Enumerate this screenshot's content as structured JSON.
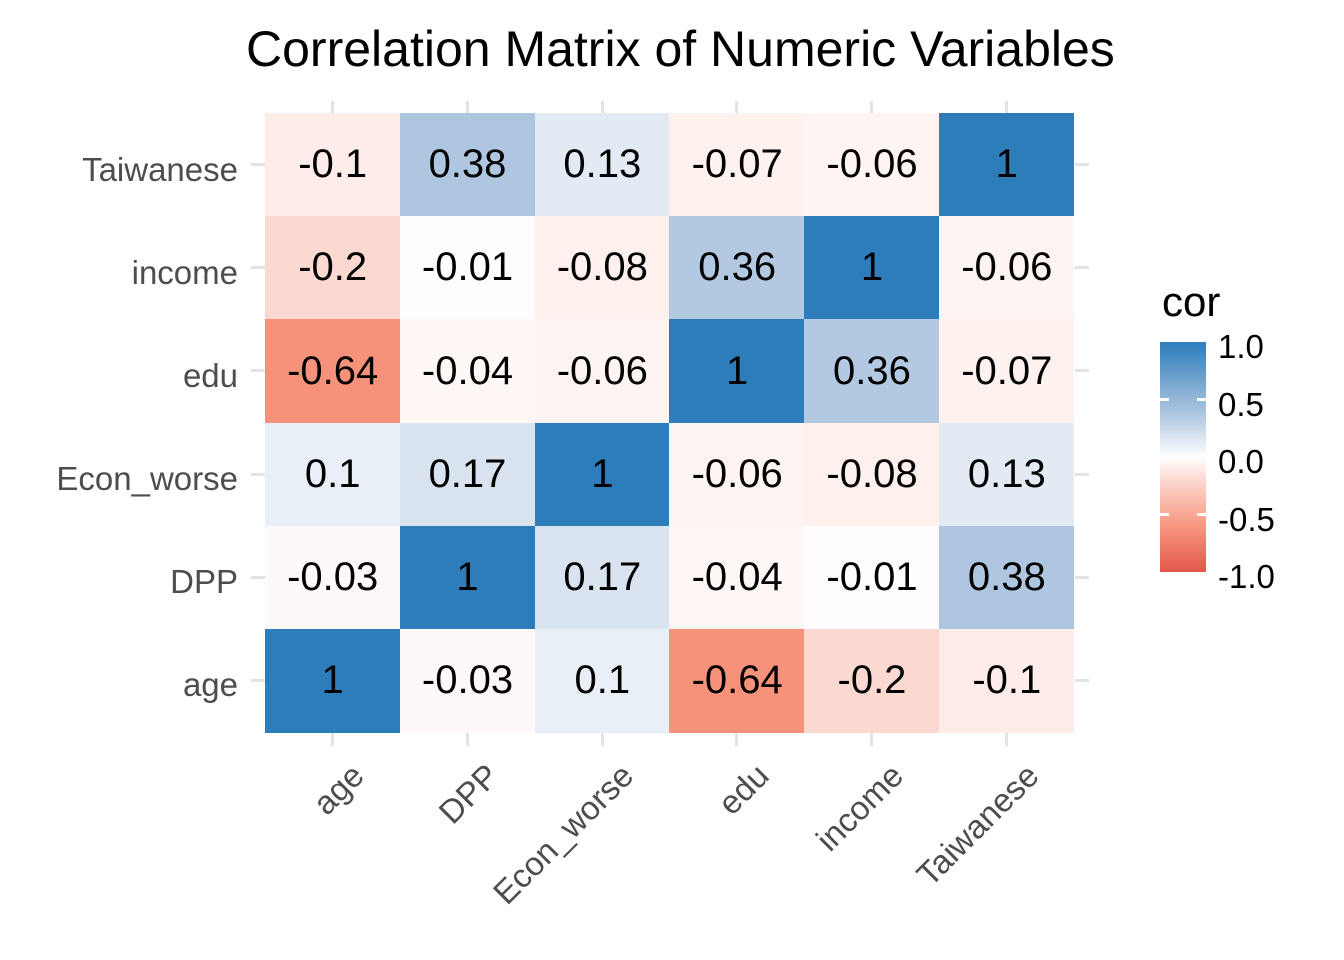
{
  "title": "Correlation Matrix of Numeric Variables",
  "chart_data": {
    "type": "heatmap",
    "title": "Correlation Matrix of Numeric Variables",
    "x_categories": [
      "age",
      "DPP",
      "Econ_worse",
      "edu",
      "income",
      "Taiwanese"
    ],
    "y_categories_top_to_bottom": [
      "Taiwanese",
      "income",
      "edu",
      "Econ_worse",
      "DPP",
      "age"
    ],
    "matrix_rows_top_to_bottom": [
      [
        -0.1,
        0.38,
        0.13,
        -0.07,
        -0.06,
        1
      ],
      [
        -0.2,
        -0.01,
        -0.08,
        0.36,
        1,
        -0.06
      ],
      [
        -0.64,
        -0.04,
        -0.06,
        1,
        0.36,
        -0.07
      ],
      [
        0.1,
        0.17,
        1,
        -0.06,
        -0.08,
        0.13
      ],
      [
        -0.03,
        1,
        0.17,
        -0.04,
        -0.01,
        0.38
      ],
      [
        1,
        -0.03,
        0.1,
        -0.64,
        -0.2,
        -0.1
      ]
    ],
    "legend": {
      "title": "cor",
      "tick_labels": [
        "1.0",
        "0.5",
        "0.0",
        "-0.5",
        "-1.0"
      ],
      "tick_values": [
        1,
        0.5,
        0,
        -0.5,
        -1
      ],
      "limits": [
        -1,
        1
      ],
      "position": "right"
    },
    "colorscale": {
      "anchors": [
        {
          "value": -1,
          "color": "#E2574A"
        },
        {
          "value": -0.64,
          "color": "#F6917A"
        },
        {
          "value": -0.2,
          "color": "#FBD9D1"
        },
        {
          "value": 0,
          "color": "#FFFFFF"
        },
        {
          "value": 0.13,
          "color": "#E2EAF3"
        },
        {
          "value": 0.38,
          "color": "#AEC6DF"
        },
        {
          "value": 1,
          "color": "#2D7DBB"
        }
      ]
    },
    "style": {
      "axis_text_color": "#4d4d4d",
      "cell_text_color": "#000000",
      "grid_stub_color": "#e3e3e3",
      "background": "#ffffff"
    },
    "grid": "minor stubs only at panel edges",
    "xlabel": "",
    "ylabel": ""
  }
}
